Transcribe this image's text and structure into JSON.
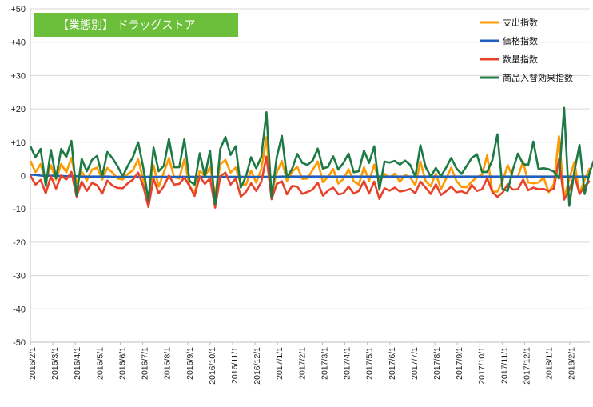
{
  "chart_data": {
    "type": "line",
    "title": "【業態別】 ドラッグストア",
    "title_bg": "#6cbf3b",
    "ylim": [
      -50,
      50
    ],
    "y_step": 10,
    "y_ticks": [
      "+50",
      "+40",
      "+30",
      "+20",
      "+10",
      "0",
      "-10",
      "-20",
      "-30",
      "-40",
      "-50"
    ],
    "grid": "horizontal",
    "legend_position": "top-right",
    "x_tick_labels": [
      "2016/2/1",
      "2016/3/1",
      "2016/4/1",
      "2016/5/1",
      "2016/6/1",
      "2016/7/1",
      "2016/8/1",
      "2016/9/1",
      "2016/10/1",
      "2016/11/1",
      "2016/12/1",
      "2017/1/1",
      "2017/2/1",
      "2017/3/1",
      "2017/4/1",
      "2017/5/1",
      "2017/6/1",
      "2017/7/1",
      "2017/8/1",
      "2017/9/1",
      "2017/10/1",
      "2017/11/1",
      "2017/12/1",
      "2018/1/1",
      "2018/2/1"
    ],
    "series": [
      {
        "name": "支出指数",
        "color": "#ff9900",
        "values": [
          4.4,
          1,
          3.5,
          -1.7,
          3.1,
          -1.2,
          3.5,
          1,
          5.3,
          -2.3,
          1.2,
          -1.5,
          1.8,
          2.4,
          -1.2,
          2.3,
          0.9,
          -0.9,
          -1.2,
          0.5,
          1.6,
          4.9,
          -1.2,
          -6.5,
          3.1,
          -3.3,
          0.9,
          5.3,
          -0.5,
          -0.9,
          4.9,
          -3.1,
          -5.3,
          1.5,
          -0.2,
          2.5,
          -5.8,
          3.4,
          4.7,
          0.9,
          2.4,
          -2.6,
          -2.8,
          1.5,
          -2.1,
          1.9,
          11.5,
          -5.6,
          0.9,
          4.4,
          -1.6,
          1.1,
          2.7,
          -1,
          -0.9,
          1.7,
          4.2,
          -2,
          -0.4,
          2,
          -2.4,
          -1,
          1.9,
          -1.7,
          -2.7,
          2.5,
          -1.6,
          3.3,
          -2.1,
          0.5,
          -0.6,
          0.6,
          -1.9,
          0.2,
          -0.5,
          -2.9,
          4.2,
          -1.6,
          -3.2,
          0.6,
          -4.1,
          -0.9,
          2.4,
          -1.6,
          -3.4,
          -3.5,
          -1.8,
          -0.5,
          0.3,
          6.1,
          -4.8,
          -4.8,
          -1.7,
          3.1,
          -0.5,
          -0.3,
          4.2,
          -2.1,
          -2.3,
          -2.1,
          -0.6,
          -5,
          -2.5,
          11.8,
          -6.6,
          -1.1,
          4.1,
          -5.3,
          -1.2,
          2.3
        ]
      },
      {
        "name": "価格指数",
        "color": "#1f5fbf",
        "values": [
          0.3,
          0.2,
          0,
          -0.1,
          0,
          -0.1,
          -0.1,
          -0.2,
          -0.2,
          -0.2,
          -0.3,
          -0.3,
          -0.3,
          -0.3,
          -0.3,
          -0.3,
          -0.4,
          -0.4,
          -0.4,
          -0.4,
          -0.4,
          -0.4,
          -0.4,
          -0.4,
          -0.4,
          -0.4,
          -0.4,
          -0.4,
          -0.4,
          -0.4,
          -0.4,
          -0.4,
          -0.4,
          -0.4,
          -0.4,
          -0.4,
          -0.4,
          -0.4,
          -0.4,
          -0.4,
          -0.4,
          -0.4,
          -0.4,
          -0.4,
          -0.4,
          -0.4,
          -0.4,
          -0.4,
          -0.4,
          -0.3,
          -0.3,
          -0.3,
          -0.3,
          -0.3,
          -0.3,
          -0.3,
          -0.3,
          -0.3,
          -0.3,
          -0.3,
          -0.3,
          -0.3,
          -0.3,
          -0.3,
          -0.3,
          -0.3,
          -0.3,
          -0.3,
          -0.3,
          -0.3,
          -0.3,
          -0.3,
          -0.3,
          -0.3,
          -0.3,
          -0.3,
          -0.3,
          -0.3,
          -0.3,
          -0.3,
          -0.3,
          -0.3,
          -0.3,
          -0.3,
          -0.3,
          -0.3,
          -0.3,
          -0.3,
          -0.3,
          -0.3,
          -0.3,
          -0.3,
          -0.3,
          -0.3,
          -0.3,
          -0.3,
          -0.3,
          -0.3,
          -0.3,
          -0.3,
          -0.3,
          -0.3,
          -0.3,
          -0.3,
          -0.3,
          -0.3,
          -0.3,
          -0.3,
          -0.3,
          -0.3
        ]
      },
      {
        "name": "数量指数",
        "color": "#e8432a",
        "values": [
          0,
          -2.7,
          -1.3,
          -5.3,
          -0.2,
          -3.9,
          0,
          -1.2,
          1.1,
          -6.3,
          -1.8,
          -4.6,
          -2.2,
          -2.9,
          -5.4,
          -1.5,
          -3,
          -3.7,
          -3.8,
          -2.3,
          -1.2,
          0.9,
          -3.2,
          -9.4,
          -0.9,
          -5.3,
          -3.2,
          0,
          -2.7,
          -2.5,
          -0.6,
          -3.1,
          -6.1,
          -0.2,
          -2.5,
          -0.8,
          -9.6,
          -0.2,
          0.9,
          -2.7,
          -0.9,
          -6.3,
          -4.9,
          -2.3,
          -4.6,
          -1.9,
          5.7,
          -7.1,
          -2.5,
          -1.7,
          -5.6,
          -3.1,
          -3.3,
          -5.5,
          -4.9,
          -4.2,
          -2.1,
          -6,
          -4.5,
          -3.6,
          -5.6,
          -5.3,
          -3.3,
          -5.4,
          -4.6,
          -1.6,
          -5.4,
          -1.8,
          -7,
          -3.8,
          -4.5,
          -3.6,
          -4.8,
          -4.5,
          -4,
          -5.3,
          -1.8,
          -3.6,
          -5.5,
          -2.6,
          -5.8,
          -4.7,
          -3.3,
          -5,
          -4.7,
          -5.4,
          -2.8,
          -4.6,
          -4.1,
          -0.8,
          -4.9,
          -6.4,
          -5.1,
          -2.6,
          -4.2,
          -4.1,
          -1.2,
          -4.4,
          -3.6,
          -4.1,
          -4,
          -4.6,
          -3.9,
          5,
          -7.2,
          -4.4,
          0.2,
          -5.5,
          -3.2,
          -1.6
        ]
      },
      {
        "name": "商品入替効果指数",
        "color": "#1d7a45",
        "values": [
          8.8,
          5.5,
          8,
          -3.1,
          7.7,
          -0.8,
          8,
          5.6,
          10.4,
          -5.9,
          5,
          1.3,
          4.7,
          5.9,
          -0.2,
          7.1,
          5.2,
          2.8,
          -0.2,
          3,
          5.6,
          10,
          2.4,
          -7.5,
          8.4,
          1.3,
          2.9,
          11,
          2.5,
          2.5,
          10.9,
          -1.6,
          -2.7,
          6.7,
          -0.3,
          7.5,
          -8.7,
          8,
          11.6,
          6.2,
          8.8,
          -3.6,
          -0.3,
          5.5,
          2.2,
          5.6,
          19,
          -6.6,
          5.5,
          11.9,
          -0.5,
          2,
          6.5,
          3.8,
          3.2,
          4.5,
          8.1,
          2.1,
          2.6,
          5.8,
          1.8,
          3.8,
          6.6,
          1,
          1.3,
          7.5,
          3.8,
          8.8,
          -4.2,
          4.2,
          3.9,
          4.4,
          3.3,
          4.5,
          3.2,
          -0.3,
          9.1,
          2.6,
          -0.3,
          2.3,
          -0.2,
          2.4,
          5.3,
          2.2,
          0.5,
          2.9,
          5.3,
          6.4,
          1.1,
          1.1,
          4.6,
          12.4,
          -4,
          -4.6,
          1.7,
          6.6,
          3.5,
          3.1,
          10.2,
          2,
          2.2,
          1.9,
          1.2,
          -0.9,
          20.3,
          -9.1,
          1.3,
          9.2,
          -5.5,
          1.1,
          5.4
        ]
      }
    ]
  }
}
